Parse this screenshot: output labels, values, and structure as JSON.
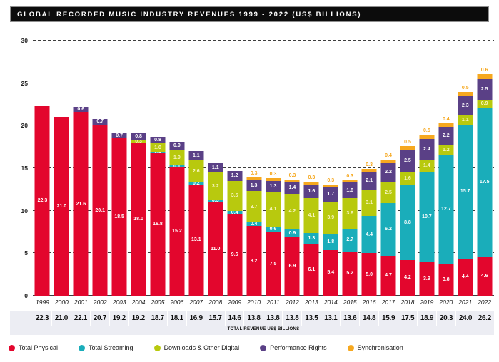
{
  "title": "GLOBAL RECORDED MUSIC INDUSTRY REVENUES 1999 - 2022 (US$ BILLIONS)",
  "chart_data": {
    "type": "bar",
    "stacked": true,
    "title": "GLOBAL RECORDED MUSIC INDUSTRY REVENUES 1999 - 2022 (US$ BILLIONS)",
    "categories": [
      "1999",
      "2000",
      "2001",
      "2002",
      "2003",
      "2004",
      "2005",
      "2006",
      "2007",
      "2008",
      "2009",
      "2010",
      "2011",
      "2012",
      "2013",
      "2014",
      "2015",
      "2016",
      "2017",
      "2018",
      "2019",
      "2020",
      "2021",
      "2022"
    ],
    "series": [
      {
        "name": "Total Physical",
        "color": "#e3062d",
        "label_color": "#ffffff",
        "label_position": "inside",
        "values": [
          22.3,
          21.0,
          21.6,
          20.1,
          18.5,
          18.0,
          16.8,
          15.2,
          13.1,
          11.0,
          9.6,
          8.2,
          7.5,
          6.9,
          6.1,
          5.4,
          5.2,
          5.0,
          4.7,
          4.2,
          3.9,
          3.8,
          4.4,
          4.6
        ]
      },
      {
        "name": "Total Streaming",
        "color": "#1aadba",
        "label_color": "#ffffff",
        "label_position": "inside",
        "values": [
          0,
          0,
          0,
          0,
          0,
          0,
          0.1,
          0.1,
          0.2,
          0.3,
          0.4,
          0.4,
          0.6,
          0.9,
          1.3,
          1.8,
          2.7,
          4.4,
          6.2,
          8.8,
          10.7,
          12.7,
          15.7,
          17.5
        ]
      },
      {
        "name": "Downloads & Other Digital",
        "color": "#b8c90e",
        "label_color": "#f8f5c0",
        "label_position": "inside",
        "values": [
          0,
          0,
          0,
          0,
          0,
          0.3,
          1.0,
          1.9,
          2.6,
          3.2,
          3.5,
          3.7,
          4.1,
          4.2,
          4.1,
          3.9,
          3.6,
          3.1,
          2.5,
          1.6,
          1.4,
          1.2,
          1.1,
          0.9
        ]
      },
      {
        "name": "Performance Rights",
        "color": "#5a4086",
        "label_color": "#ffffff",
        "label_position": "inside",
        "values": [
          0,
          0,
          0.6,
          0.7,
          0.7,
          0.8,
          0.8,
          0.9,
          1.1,
          1.1,
          1.2,
          1.3,
          1.3,
          1.4,
          1.6,
          1.7,
          1.8,
          2.1,
          2.2,
          2.5,
          2.4,
          2.2,
          2.3,
          2.5
        ]
      },
      {
        "name": "Synchronisation",
        "color": "#f6a81f",
        "label_color": "#f6a81f",
        "label_position": "above",
        "values": [
          0,
          0,
          0,
          0,
          0,
          0,
          0,
          0,
          0,
          0,
          0,
          0.3,
          0.3,
          0.3,
          0.3,
          0.3,
          0.3,
          0.3,
          0.4,
          0.5,
          0.5,
          0.4,
          0.5,
          0.6
        ]
      }
    ],
    "totals": [
      22.3,
      21.0,
      22.1,
      20.7,
      19.2,
      19.2,
      18.7,
      18.1,
      16.9,
      15.7,
      14.6,
      13.8,
      13.8,
      13.8,
      13.5,
      13.1,
      13.6,
      14.8,
      15.9,
      17.5,
      18.9,
      20.3,
      24.0,
      26.2
    ],
    "totals_label": "TOTAL REVENUE US$ BILLIONS",
    "ylabel": "",
    "xlabel": "",
    "ylim": [
      0,
      30
    ],
    "yticks": [
      0,
      5,
      10,
      15,
      20,
      25,
      30
    ],
    "grid": "dashed horizontal",
    "legend_position": "bottom"
  }
}
